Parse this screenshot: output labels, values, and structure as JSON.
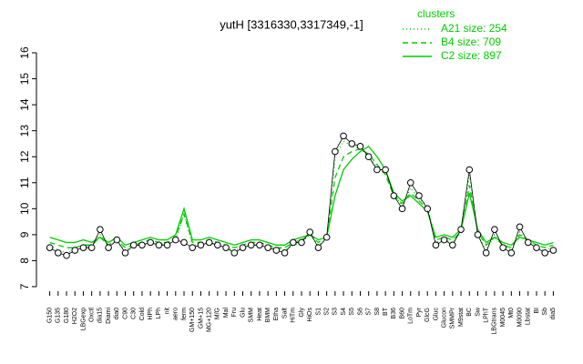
{
  "chart_data": {
    "type": "line",
    "title": "yutH [3316330,3317349,-1]",
    "legend_title": "clusters",
    "categories": [
      "G150",
      "G135",
      "G180",
      "H2O2",
      "LBGexp",
      "Oxctl",
      "dia15",
      "Diami",
      "dia0",
      "C90",
      "C30",
      "Cold",
      "HPh",
      "LPh",
      "nit",
      "aero",
      "ferm",
      "GM+150",
      "GM+15",
      "MG+120",
      "M/G",
      "Mal",
      "Fru",
      "Glu",
      "SMM",
      "Heat",
      "BMM",
      "Etha",
      "Salt",
      "HiTm",
      "Gly",
      "HiOs",
      "S1",
      "S2",
      "S3",
      "S4",
      "S5",
      "S6",
      "S7",
      "S8",
      "BT",
      "B36",
      "B60",
      "LoTm",
      "Pyr",
      "GlcG",
      "Gluc",
      "Glucon",
      "SMMPr",
      "M9stat",
      "BC",
      "Sw",
      "LPhT",
      "LBGtrans",
      "M0045",
      "Mt0",
      "M0090",
      "Lbstat",
      "BI",
      "Sb",
      "dia5"
    ],
    "values": [
      8.5,
      8.3,
      8.2,
      8.4,
      8.5,
      8.5,
      9.2,
      8.5,
      8.8,
      8.3,
      8.6,
      8.6,
      8.7,
      8.6,
      8.6,
      8.8,
      8.7,
      8.5,
      8.6,
      8.7,
      8.6,
      8.5,
      8.3,
      8.5,
      8.6,
      8.6,
      8.5,
      8.4,
      8.3,
      8.7,
      8.7,
      9.1,
      8.5,
      8.9,
      12.2,
      12.8,
      12.5,
      12.4,
      12.0,
      11.5,
      11.5,
      10.5,
      10.0,
      11.0,
      10.5,
      10.0,
      8.6,
      8.8,
      8.6,
      9.2,
      11.5,
      9.0,
      8.3,
      9.2,
      8.5,
      8.3,
      9.3,
      8.7,
      8.5,
      8.3,
      8.4
    ],
    "series": [
      {
        "name": "A21 size: 254",
        "color": "#00cc00",
        "dash": "dotted",
        "values": [
          8.6,
          8.4,
          8.3,
          8.4,
          8.5,
          8.6,
          9.0,
          8.6,
          8.7,
          8.4,
          8.6,
          8.6,
          8.7,
          8.6,
          8.7,
          8.8,
          9.8,
          8.6,
          8.6,
          8.7,
          8.6,
          8.5,
          8.4,
          8.5,
          8.6,
          8.6,
          8.5,
          8.5,
          8.4,
          8.6,
          8.7,
          9.0,
          8.6,
          8.8,
          12.0,
          12.6,
          12.4,
          12.3,
          12.0,
          11.6,
          11.4,
          10.6,
          10.1,
          10.8,
          10.4,
          10.1,
          8.7,
          8.8,
          8.7,
          9.1,
          11.3,
          9.0,
          8.4,
          9.0,
          8.6,
          8.4,
          9.1,
          8.7,
          8.5,
          8.4,
          8.5
        ]
      },
      {
        "name": "B4 size: 709",
        "color": "#00cc00",
        "dash": "dashed",
        "values": [
          8.7,
          8.6,
          8.5,
          8.5,
          8.6,
          8.6,
          8.9,
          8.6,
          8.8,
          8.5,
          8.6,
          8.7,
          8.8,
          8.7,
          8.7,
          8.9,
          9.8,
          8.7,
          8.7,
          8.8,
          8.7,
          8.6,
          8.5,
          8.6,
          8.7,
          8.7,
          8.6,
          8.5,
          8.5,
          8.7,
          8.8,
          9.0,
          8.7,
          8.9,
          11.2,
          12.0,
          12.2,
          12.3,
          12.1,
          11.7,
          11.3,
          10.5,
          10.2,
          10.6,
          10.3,
          10.0,
          8.8,
          8.9,
          8.8,
          9.1,
          10.9,
          9.1,
          8.6,
          8.9,
          8.6,
          8.5,
          9.0,
          8.8,
          8.6,
          8.5,
          8.6
        ]
      },
      {
        "name": "C2 size: 897",
        "color": "#00cc00",
        "dash": "solid",
        "values": [
          8.9,
          8.8,
          8.7,
          8.7,
          8.8,
          8.7,
          8.9,
          8.7,
          8.9,
          8.6,
          8.7,
          8.8,
          8.9,
          8.8,
          8.8,
          9.0,
          10.0,
          8.8,
          8.8,
          8.9,
          8.8,
          8.7,
          8.6,
          8.7,
          8.8,
          8.8,
          8.7,
          8.6,
          8.6,
          8.8,
          8.9,
          9.0,
          8.8,
          8.9,
          10.5,
          11.5,
          11.9,
          12.2,
          12.4,
          12.0,
          11.5,
          10.6,
          10.3,
          10.5,
          10.2,
          9.9,
          8.9,
          9.0,
          8.9,
          9.2,
          10.6,
          9.2,
          8.7,
          8.9,
          8.7,
          8.6,
          8.9,
          8.8,
          8.7,
          8.6,
          8.7
        ]
      }
    ],
    "point_color": "#000000",
    "ylim": [
      7,
      16
    ],
    "yticks": [
      7,
      8,
      9,
      10,
      11,
      12,
      13,
      14,
      15,
      16
    ]
  }
}
